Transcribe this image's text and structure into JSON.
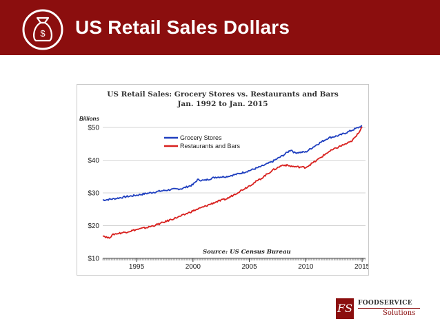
{
  "header": {
    "title": "US Retail Sales Dollars",
    "bg_color": "#8b0e0e",
    "icon": "money-bag-icon",
    "icon_symbol": "$"
  },
  "chart_data": {
    "type": "line",
    "title_line1": "US Retail Sales: Grocery Stores vs. Restaurants and Bars",
    "title_line2": "Jan. 1992 to Jan. 2015",
    "y_unit_label": "Billions",
    "source": "Source: US Census Bureau",
    "xlim": [
      1992,
      2015.3
    ],
    "ylim": [
      10,
      50
    ],
    "y_ticks": [
      10,
      20,
      30,
      40,
      50
    ],
    "y_tick_labels": [
      "$10",
      "$20",
      "$30",
      "$40",
      "$50"
    ],
    "x_ticks": [
      1995,
      2000,
      2005,
      2010,
      2015
    ],
    "x_tick_labels": [
      "1995",
      "2000",
      "2005",
      "2010",
      "2015"
    ],
    "legend_position": "upper-left",
    "series": [
      {
        "name": "Grocery Stores",
        "color": "#1f3fbf",
        "x": [
          1992,
          1993,
          1994,
          1995,
          1996,
          1997,
          1998,
          1999,
          2000,
          2000.4,
          2001,
          2002,
          2003,
          2004,
          2005,
          2006,
          2007,
          2008,
          2008.7,
          2009,
          2010,
          2011,
          2012,
          2013,
          2014,
          2015
        ],
        "y": [
          27.8,
          28.2,
          28.8,
          29.3,
          29.9,
          30.5,
          31.0,
          31.3,
          32.5,
          34.0,
          33.8,
          34.8,
          35.0,
          35.8,
          36.8,
          38.0,
          39.5,
          41.5,
          43.2,
          42.3,
          42.5,
          44.8,
          46.8,
          47.6,
          49.0,
          50.5
        ]
      },
      {
        "name": "Restaurants and Bars",
        "color": "#d8201e",
        "x": [
          1992,
          1992.5,
          1993,
          1994,
          1995,
          1996,
          1997,
          1998,
          1999,
          2000,
          2001,
          2002,
          2003,
          2004,
          2005,
          2006,
          2007,
          2008,
          2009,
          2010,
          2011,
          2012,
          2013,
          2014,
          2014.5,
          2015
        ],
        "y": [
          17.0,
          16.2,
          17.4,
          18.0,
          18.8,
          19.5,
          20.5,
          21.8,
          23.0,
          24.5,
          25.8,
          27.2,
          28.2,
          30.2,
          32.2,
          34.3,
          36.8,
          38.6,
          38.0,
          37.8,
          40.0,
          42.5,
          44.2,
          45.6,
          47.4,
          50.2
        ]
      }
    ]
  },
  "logo": {
    "mark": "FS",
    "line1": "FOODSERVICE",
    "line2": "Solutions"
  }
}
